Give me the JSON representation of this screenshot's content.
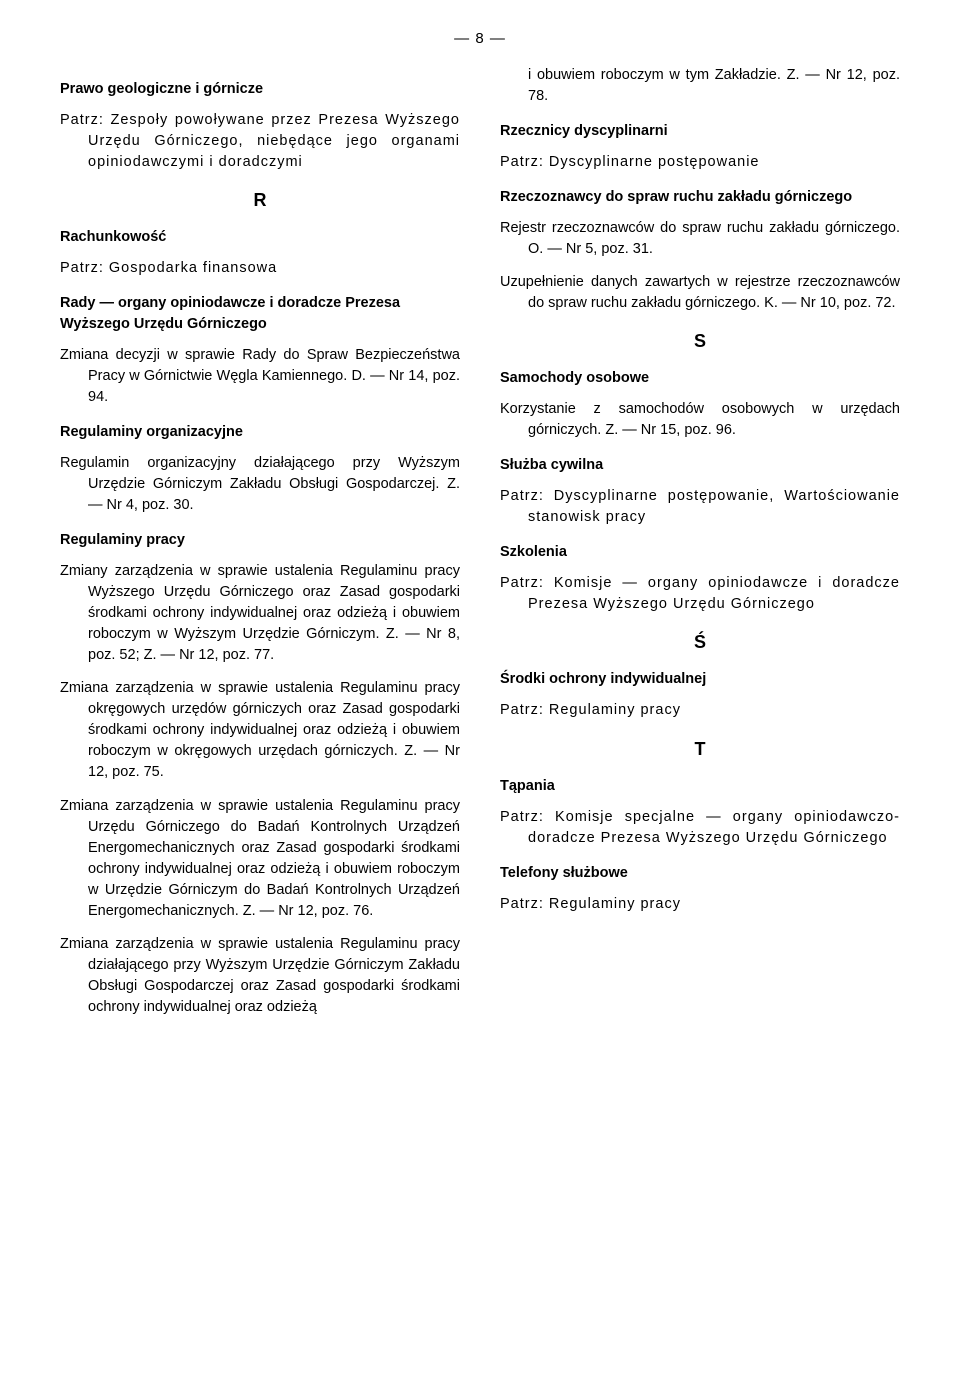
{
  "page_number": "—  8  —",
  "left": {
    "h1": "Prawo geologiczne i górnicze",
    "p1": "Patrz: Zespoły powoływane przez Prezesa Wyższego Urzędu Górniczego, niebędące jego organami opiniodawczymi i doradczymi",
    "letter_R": "R",
    "h2": "Rachunkowość",
    "p2": "Patrz: Gospodarka finansowa",
    "h3": "Rady — organy opiniodawcze i doradcze Prezesa Wyższego Urzędu Górniczego",
    "p3": "Zmiana decyzji w sprawie Rady do Spraw Bezpieczeństwa Pracy w Górnictwie Węgla Kamiennego. D. — Nr 14, poz. 94.",
    "h4": "Regulaminy organizacyjne",
    "p4": "Regulamin organizacyjny działającego przy Wyższym Urzędzie Górniczym Zakładu Obsługi Gospodarczej. Z. — Nr 4, poz. 30.",
    "h5": "Regulaminy pracy",
    "p5": "Zmiany zarządzenia w sprawie ustalenia Regulaminu pracy Wyższego Urzędu Górniczego oraz Zasad gospodarki środkami ochrony indywidualnej oraz odzieżą i obuwiem roboczym w Wyższym Urzędzie Górniczym. Z. — Nr 8, poz. 52; Z. — Nr 12, poz. 77.",
    "p6": "Zmiana zarządzenia w sprawie ustalenia Regulaminu pracy okręgowych urzędów górniczych oraz Zasad gospodarki środkami ochrony indywidualnej oraz odzieżą i obuwiem roboczym w okręgowych urzędach górniczych. Z. — Nr 12, poz. 75.",
    "p7": "Zmiana zarządzenia w sprawie ustalenia Regulaminu pracy Urzędu Górniczego do Badań Kontrolnych Urządzeń Energomechanicznych oraz Zasad gospodarki środkami ochrony indywidualnej oraz odzieżą i obuwiem roboczym w Urzędzie Górniczym do Badań Kontrolnych Urządzeń Energomechanicznych. Z. — Nr 12, poz. 76.",
    "p8": "Zmiana zarządzenia w sprawie ustalenia Regulaminu pracy działającego przy Wyższym Urzędzie Górniczym Zakładu Obsługi Gospodarczej oraz Zasad gospodarki środkami ochrony indywidualnej oraz odzieżą"
  },
  "right": {
    "p0": "i obuwiem roboczym w tym Zakładzie. Z. — Nr 12, poz. 78.",
    "h1": "Rzecznicy dyscyplinarni",
    "p1": "Patrz: Dyscyplinarne postępowanie",
    "h2": "Rzeczoznawcy do spraw ruchu zakładu górniczego",
    "p2": "Rejestr rzeczoznawców do spraw ruchu zakładu górniczego. O. — Nr 5, poz. 31.",
    "p3": "Uzupełnienie danych zawartych w rejestrze rzeczoznawców do spraw ruchu zakładu górniczego. K. — Nr 10, poz. 72.",
    "letter_S": "S",
    "h3": "Samochody osobowe",
    "p4": "Korzystanie z samochodów osobowych w urzędach górniczych. Z. — Nr 15, poz. 96.",
    "h4": "Służba cywilna",
    "p5": "Patrz: Dyscyplinarne postępowanie, Wartościowanie stanowisk pracy",
    "h5": "Szkolenia",
    "p6": "Patrz: Komisje — organy opiniodawcze i doradcze Prezesa Wyższego Urzędu Górniczego",
    "letter_Sacute": "Ś",
    "h6": "Środki ochrony indywidualnej",
    "p7": "Patrz: Regulaminy pracy",
    "letter_T": "T",
    "h7": "Tąpania",
    "p8": "Patrz: Komisje specjalne — organy opiniodawczo-doradcze Prezesa Wyższego Urzędu Górniczego",
    "h8": "Telefony służbowe",
    "p9": "Patrz: Regulaminy pracy"
  }
}
